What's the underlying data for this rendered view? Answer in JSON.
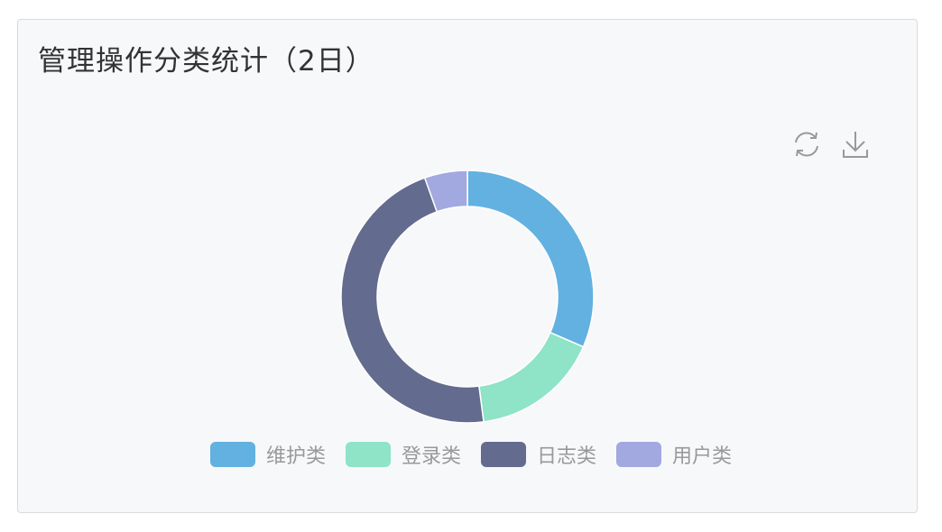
{
  "chart_data": {
    "type": "pie",
    "title": "管理操作分类统计（2日）",
    "donut": true,
    "categories": [
      "维护类",
      "登录类",
      "日志类",
      "用户类"
    ],
    "values": [
      23,
      12,
      34,
      4
    ],
    "colors": [
      "#62b1e0",
      "#8fe3c6",
      "#636b8e",
      "#a2a8e0"
    ],
    "legend_position": "bottom"
  },
  "toolbox": {
    "refresh_icon": "refresh-icon",
    "download_icon": "download-icon"
  }
}
